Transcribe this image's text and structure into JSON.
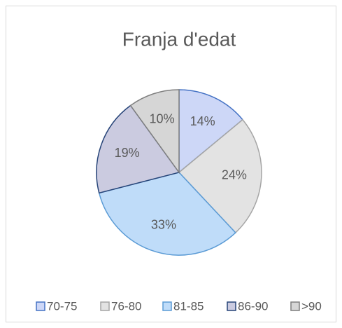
{
  "chart_data": {
    "type": "pie",
    "title": "Franja d'edat",
    "categories": [
      "70-75",
      "76-80",
      "81-85",
      "86-90",
      ">90"
    ],
    "values": [
      14,
      24,
      33,
      19,
      10
    ],
    "value_labels": [
      "14%",
      "24%",
      "33%",
      "19%",
      "10%"
    ],
    "colors": [
      "#cdd7f7",
      "#e3e3e3",
      "#bfdcf9",
      "#cbcbe0",
      "#d6d6d6"
    ],
    "edgecolors": [
      "#4472c4",
      "#a5a5a5",
      "#5b9bd5",
      "#264478",
      "#7f7f7f"
    ],
    "legend": "bottom"
  }
}
